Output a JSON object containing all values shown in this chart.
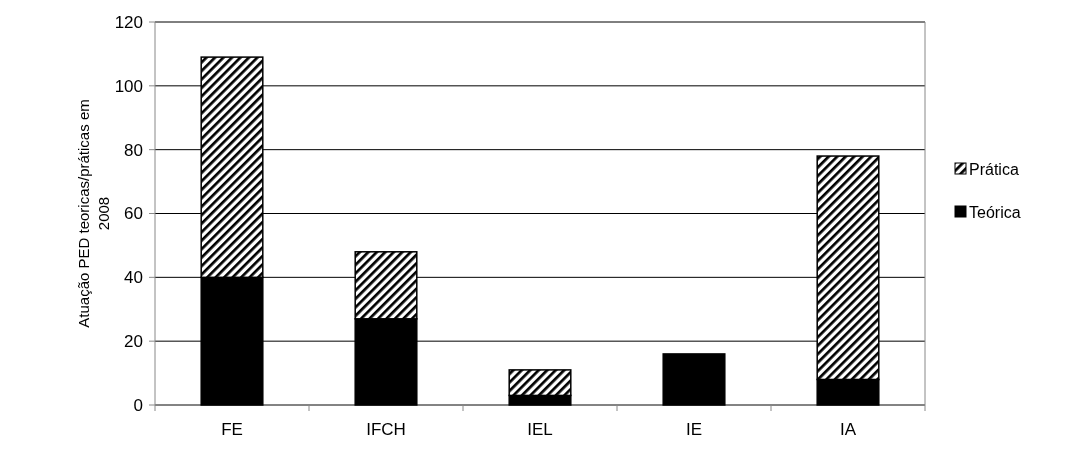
{
  "chart_data": {
    "type": "bar",
    "stacked": true,
    "ylabel": "Atuação PED teoricas/práticas em 2008",
    "categories": [
      "FE",
      "IFCH",
      "IEL",
      "IE",
      "IA"
    ],
    "series": [
      {
        "name": "Teórica",
        "color": "#000000",
        "values": [
          40,
          27,
          3,
          16,
          8
        ]
      },
      {
        "name": "Prática",
        "color": "#000000",
        "values": [
          69,
          21,
          8,
          0,
          70
        ]
      }
    ],
    "ylim": [
      0,
      120
    ],
    "yticks": [
      0,
      20,
      40,
      60,
      80,
      100,
      120
    ],
    "grid": "y",
    "legend": "right"
  }
}
